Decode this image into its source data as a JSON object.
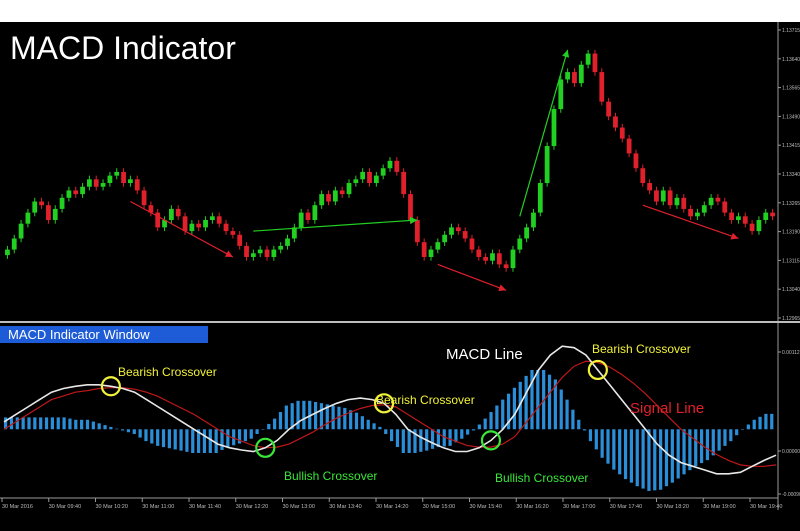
{
  "chart_data": {
    "type": "candlestick+macd",
    "title": "MACD Indicator",
    "indicator_window_label": "MACD Indicator Window",
    "price_axis_ticks": [
      "1.13715",
      "1.13640",
      "1.13565",
      "1.13490",
      "1.13415",
      "1.13340",
      "1.13265",
      "1.13190",
      "1.13115",
      "1.13040",
      "1.12965"
    ],
    "macd_axis_ticks": [
      "0.00112",
      "0.00000",
      "-0.00090"
    ],
    "time_axis_ticks": [
      "30 Mar 2016",
      "30 Mar 09:40",
      "30 Mar 10:20",
      "30 Mar 11:00",
      "30 Mar 11:40",
      "30 Mar 12:20",
      "30 Mar 13:00",
      "30 Mar 13:40",
      "30 Mar 14:20",
      "30 Mar 15:00",
      "30 Mar 15:40",
      "30 Mar 16:20",
      "30 Mar 17:00",
      "30 Mar 17:40",
      "30 Mar 18:20",
      "30 Mar 19:00",
      "30 Mar 19:40"
    ],
    "price_range": [
      1.12935,
      1.1373
    ],
    "macd_range": [
      -0.0009,
      0.00115
    ],
    "close_prices": [
      1.1312,
      1.1315,
      1.1319,
      1.1322,
      1.1325,
      1.1324,
      1.132,
      1.1323,
      1.1326,
      1.1328,
      1.1327,
      1.1329,
      1.1331,
      1.1329,
      1.133,
      1.1332,
      1.1333,
      1.133,
      1.1331,
      1.1328,
      1.1324,
      1.1322,
      1.1318,
      1.132,
      1.1323,
      1.1321,
      1.1317,
      1.1319,
      1.1318,
      1.132,
      1.1321,
      1.1319,
      1.1317,
      1.1316,
      1.1313,
      1.131,
      1.1311,
      1.1312,
      1.131,
      1.1312,
      1.1313,
      1.1315,
      1.1318,
      1.1322,
      1.132,
      1.1324,
      1.1327,
      1.1325,
      1.1328,
      1.1327,
      1.133,
      1.1331,
      1.1333,
      1.133,
      1.1332,
      1.1334,
      1.1336,
      1.1333,
      1.1327,
      1.132,
      1.1314,
      1.131,
      1.1312,
      1.1314,
      1.1316,
      1.1318,
      1.1317,
      1.1315,
      1.1312,
      1.131,
      1.1309,
      1.1311,
      1.1308,
      1.1307,
      1.1312,
      1.1315,
      1.1318,
      1.1322,
      1.133,
      1.134,
      1.135,
      1.1358,
      1.136,
      1.1357,
      1.1362,
      1.1365,
      1.136,
      1.1352,
      1.1348,
      1.1345,
      1.1342,
      1.1338,
      1.1334,
      1.133,
      1.1328,
      1.1325,
      1.1328,
      1.1324,
      1.1326,
      1.1323,
      1.1321,
      1.1322,
      1.1324,
      1.1326,
      1.1325,
      1.1322,
      1.132,
      1.1321,
      1.1319,
      1.1317,
      1.132,
      1.1322,
      1.1321
    ],
    "macd_line": [
      0.0001,
      0.0002,
      0.0003,
      0.0004,
      0.0005,
      0.00055,
      0.00058,
      0.0006,
      0.0006,
      0.00058,
      0.00055,
      0.0005,
      0.0004,
      0.0003,
      0.0002,
      0.0001,
      0.0,
      -0.0001,
      -0.0002,
      -0.00025,
      -0.00028,
      -0.0003,
      -0.00025,
      -0.00015,
      0.0,
      0.00012,
      0.0002,
      0.00028,
      0.00035,
      0.0004,
      0.00042,
      0.0004,
      0.00035,
      0.0002,
      0.0,
      -0.0001,
      -0.00018,
      -0.00025,
      -0.0003,
      -0.0003,
      -0.00025,
      -0.00015,
      0.0,
      0.0002,
      0.0005,
      0.0008,
      0.001,
      0.00112,
      0.0011,
      0.001,
      0.0008,
      0.0006,
      0.0004,
      0.0002,
      0.0,
      -0.0002,
      -0.00035,
      -0.00045,
      -0.0005,
      -0.00055,
      -0.0006,
      -0.0006,
      -0.00058,
      -0.0005,
      -0.00042,
      -0.00035
    ],
    "signal_line": [
      0.0,
      0.0001,
      0.0002,
      0.0003,
      0.0004,
      0.00045,
      0.0005,
      0.00052,
      0.00055,
      0.00056,
      0.00056,
      0.00054,
      0.0005,
      0.00044,
      0.00036,
      0.00028,
      0.0002,
      0.0001,
      0.0,
      -0.0001,
      -0.00016,
      -0.00022,
      -0.00025,
      -0.00024,
      -0.0002,
      -0.00012,
      -4e-05,
      6e-05,
      0.00015,
      0.00022,
      0.00028,
      0.00032,
      0.00033,
      0.0003,
      0.0002,
      0.0001,
      0.0,
      -0.0001,
      -0.00016,
      -0.00022,
      -0.00024,
      -0.00024,
      -0.0002,
      -0.0001,
      0.0001,
      0.0003,
      0.0005,
      0.0007,
      0.00085,
      0.00092,
      0.0009,
      0.00084,
      0.00074,
      0.00062,
      0.00048,
      0.00032,
      0.00016,
      0.0,
      -0.00012,
      -0.00024,
      -0.00034,
      -0.00042,
      -0.00048,
      -0.0005,
      -0.0005,
      -0.00048
    ],
    "annotations": [
      {
        "text": "Bearish Crossover",
        "type": "bearish",
        "macd_index": 9
      },
      {
        "text": "Bullish Crossover",
        "type": "bullish",
        "macd_index": 22
      },
      {
        "text": "Bearish Crossover",
        "type": "bearish",
        "macd_index": 32
      },
      {
        "text": "Bullish Crossover",
        "type": "bullish",
        "macd_index": 41
      },
      {
        "text": "Bearish Crossover",
        "type": "bearish",
        "macd_index": 50
      }
    ],
    "line_labels": [
      {
        "text": "MACD Line",
        "color": "#ffffff"
      },
      {
        "text": "Signal Line",
        "color": "#e0202b"
      }
    ],
    "trend_arrows": [
      {
        "direction": "down",
        "color": "#e0202b",
        "from_index": 18,
        "to_index": 33
      },
      {
        "direction": "up",
        "color": "#22d022",
        "from_index": 36,
        "to_index": 60
      },
      {
        "direction": "down",
        "color": "#e0202b",
        "from_index": 63,
        "to_index": 73
      },
      {
        "direction": "up",
        "color": "#22d022",
        "from_index": 75,
        "to_index": 82
      },
      {
        "direction": "down",
        "color": "#e0202b",
        "from_index": 93,
        "to_index": 107
      }
    ],
    "colors": {
      "bull_candle": "#22d022",
      "bear_candle": "#e0202b",
      "histogram": "#2a8fd8",
      "macd_line": "#e8e8e8",
      "signal_line": "#c01818",
      "bearish_circle": "#f2f23a",
      "bullish_circle": "#39e639"
    },
    "grid": false
  }
}
